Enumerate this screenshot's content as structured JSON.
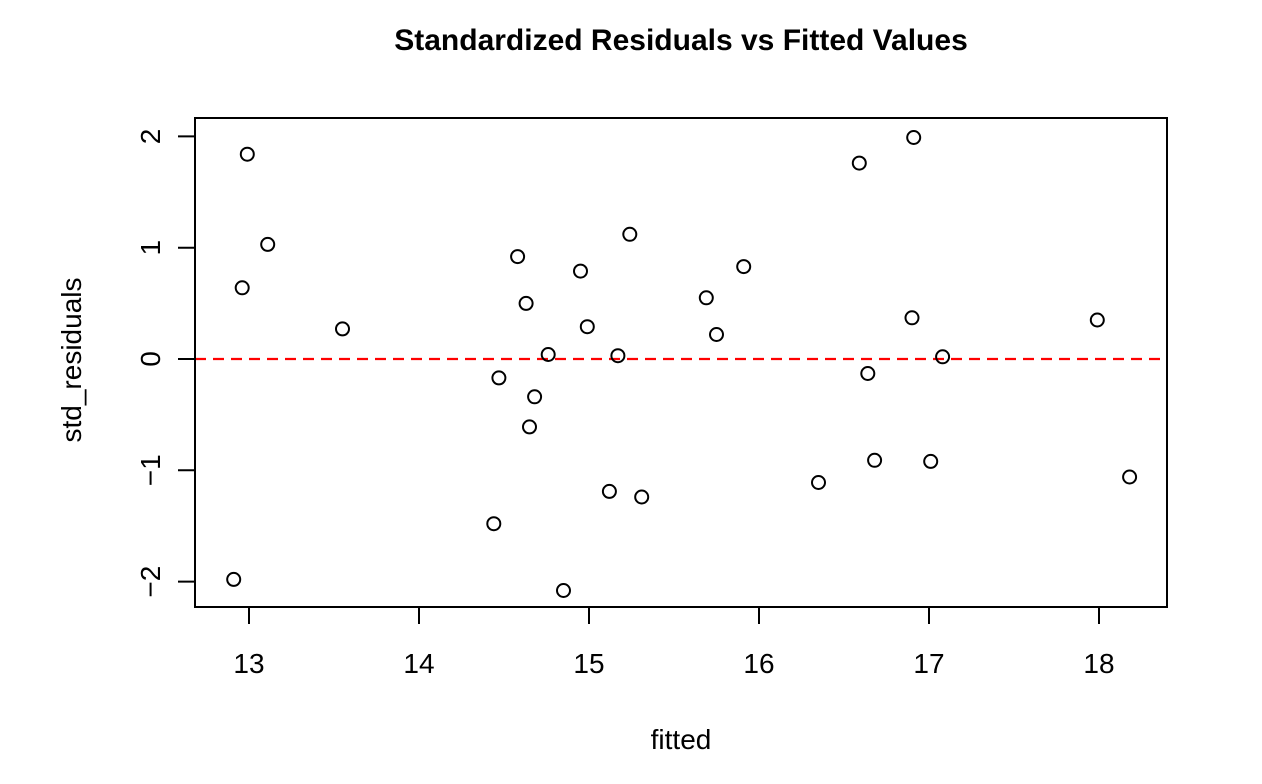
{
  "chart_data": {
    "type": "scatter",
    "title": "Standardized Residuals vs Fitted Values",
    "xlabel": "fitted",
    "ylabel": "std_residuals",
    "xlim": [
      12.68,
      18.41
    ],
    "ylim": [
      -2.23,
      2.17
    ],
    "grid": false,
    "legend": "none",
    "x_ticks": [
      {
        "value": 13,
        "label": "13"
      },
      {
        "value": 14,
        "label": "14"
      },
      {
        "value": 15,
        "label": "15"
      },
      {
        "value": 16,
        "label": "16"
      },
      {
        "value": 17,
        "label": "17"
      },
      {
        "value": 18,
        "label": "18"
      }
    ],
    "y_ticks": [
      {
        "value": -2,
        "label": "−2"
      },
      {
        "value": -1,
        "label": "−1"
      },
      {
        "value": 0,
        "label": "0"
      },
      {
        "value": 1,
        "label": "1"
      },
      {
        "value": 2,
        "label": "2"
      }
    ],
    "reference_line": {
      "y": 0,
      "color": "#ff0000",
      "style": "dashed"
    },
    "marker": {
      "style": "open-circle",
      "stroke_color": "#000000"
    },
    "colors": {
      "axis": "#000000",
      "background": "#ffffff",
      "reference": "#ff0000"
    },
    "points": [
      [
        12.99,
        1.84
      ],
      [
        13.11,
        1.03
      ],
      [
        12.96,
        0.64
      ],
      [
        13.55,
        0.27
      ],
      [
        12.91,
        -1.98
      ],
      [
        14.44,
        -1.48
      ],
      [
        14.47,
        -0.17
      ],
      [
        14.58,
        0.92
      ],
      [
        14.63,
        0.5
      ],
      [
        14.65,
        -0.61
      ],
      [
        14.68,
        -0.34
      ],
      [
        14.76,
        0.04
      ],
      [
        14.85,
        -2.08
      ],
      [
        14.95,
        0.79
      ],
      [
        14.99,
        0.29
      ],
      [
        15.12,
        -1.19
      ],
      [
        15.17,
        0.03
      ],
      [
        15.24,
        1.12
      ],
      [
        15.31,
        -1.24
      ],
      [
        15.69,
        0.55
      ],
      [
        15.75,
        0.22
      ],
      [
        15.91,
        0.83
      ],
      [
        16.35,
        -1.11
      ],
      [
        16.59,
        1.76
      ],
      [
        16.64,
        -0.13
      ],
      [
        16.68,
        -0.91
      ],
      [
        16.91,
        1.99
      ],
      [
        16.9,
        0.37
      ],
      [
        17.01,
        -0.92
      ],
      [
        17.08,
        0.02
      ],
      [
        17.99,
        0.35
      ],
      [
        18.18,
        -1.06
      ]
    ]
  }
}
